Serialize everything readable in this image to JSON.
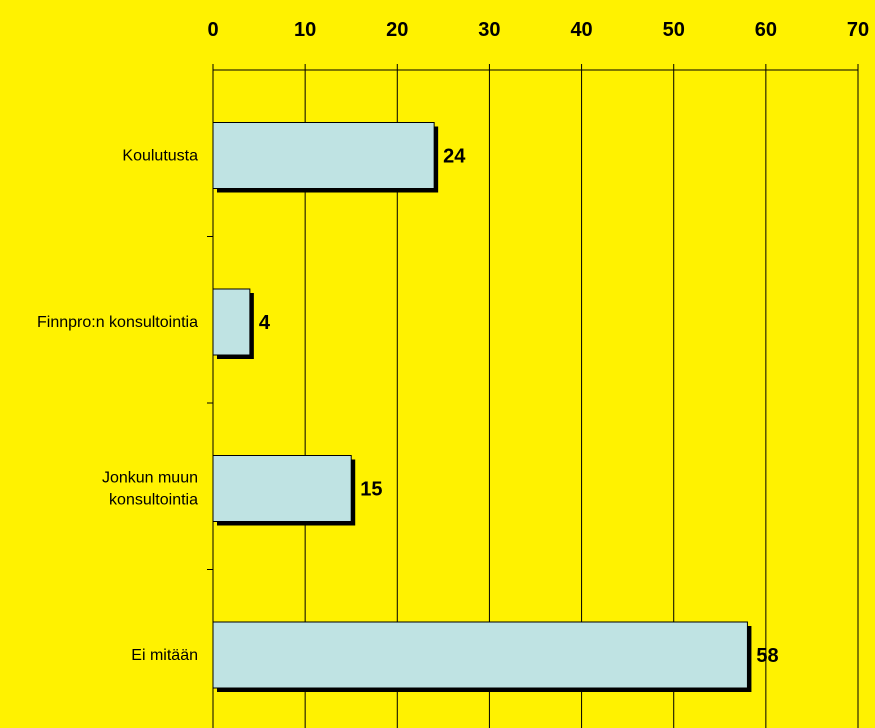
{
  "colors": {
    "background": "#FFF200",
    "bar_fill": "#BFE3E3",
    "bar_stroke": "#000000",
    "bar_shadow": "#000000",
    "grid": "#000000"
  },
  "chart_data": {
    "type": "bar",
    "orientation": "horizontal",
    "categories": [
      [
        "Koulutusta"
      ],
      [
        "Finnpro:n konsultointia"
      ],
      [
        "Jonkun muun",
        "konsultointia"
      ],
      [
        "Ei mitään"
      ]
    ],
    "values": [
      24,
      4,
      15,
      58
    ],
    "data_labels": [
      "24",
      "4",
      "15",
      "58"
    ],
    "xlim": [
      0,
      70
    ],
    "x_ticks": [
      0,
      10,
      20,
      30,
      40,
      50,
      60,
      70
    ],
    "x_tick_labels": [
      "0",
      "10",
      "20",
      "30",
      "40",
      "50",
      "60",
      "70"
    ],
    "x_axis_position": "top",
    "grid": true,
    "title": "",
    "xlabel": "",
    "ylabel": ""
  }
}
